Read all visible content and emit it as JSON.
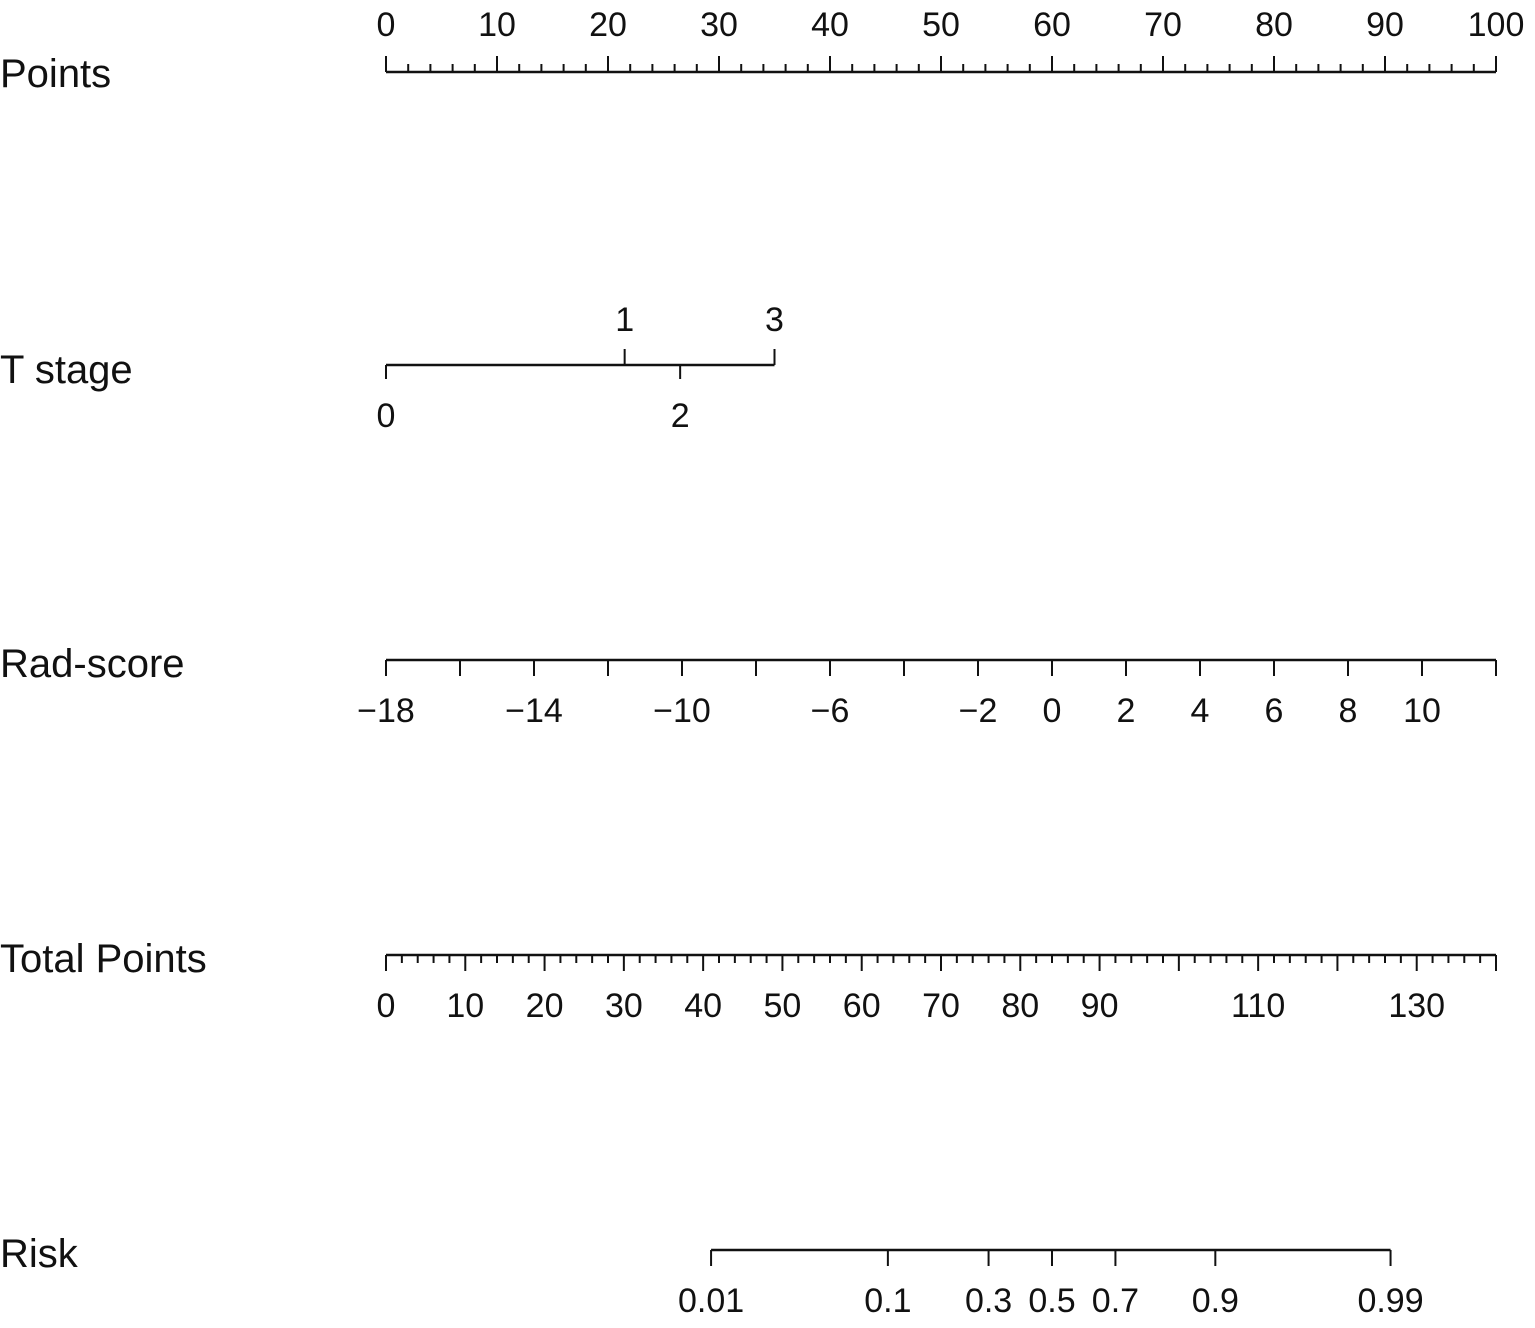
{
  "chart_data": {
    "type": "nomogram",
    "rows": [
      {
        "id": "points",
        "label": "Points",
        "min": 0,
        "max": 100,
        "major": [
          0,
          10,
          20,
          30,
          40,
          50,
          60,
          70,
          80,
          90,
          100
        ],
        "minor_step": 2,
        "label_side": "above",
        "tick_dir": "up",
        "labels": [
          {
            "text": "0",
            "value": 0
          },
          {
            "text": "10",
            "value": 10
          },
          {
            "text": "20",
            "value": 20
          },
          {
            "text": "30",
            "value": 30
          },
          {
            "text": "40",
            "value": 40
          },
          {
            "text": "50",
            "value": 50
          },
          {
            "text": "60",
            "value": 60
          },
          {
            "text": "70",
            "value": 70
          },
          {
            "text": "80",
            "value": 80
          },
          {
            "text": "90",
            "value": 90
          },
          {
            "text": "100",
            "value": 100
          }
        ]
      },
      {
        "id": "t-stage",
        "label": "T stage",
        "points_min": 0,
        "points_max": 35,
        "labels": [
          {
            "text": "0",
            "value": 0,
            "points": 0,
            "side": "below"
          },
          {
            "text": "1",
            "value": 1,
            "points": 21.5,
            "side": "above"
          },
          {
            "text": "2",
            "value": 2,
            "points": 26.5,
            "side": "below"
          },
          {
            "text": "3",
            "value": 3,
            "points": 35,
            "side": "above"
          }
        ]
      },
      {
        "id": "rad-score",
        "label": "Rad-score",
        "min": -18,
        "max": 12,
        "major_step": 2,
        "label_side": "below",
        "tick_dir": "up",
        "labels": [
          {
            "text": "−18",
            "value": -18
          },
          {
            "text": "−14",
            "value": -14
          },
          {
            "text": "−10",
            "value": -10
          },
          {
            "text": "−6",
            "value": -6
          },
          {
            "text": "−2",
            "value": -2
          },
          {
            "text": "0",
            "value": 0
          },
          {
            "text": "2",
            "value": 2
          },
          {
            "text": "4",
            "value": 4
          },
          {
            "text": "6",
            "value": 6
          },
          {
            "text": "8",
            "value": 8
          },
          {
            "text": "10",
            "value": 10
          }
        ]
      },
      {
        "id": "total-points",
        "label": "Total Points",
        "min": 0,
        "max": 140,
        "major_step": 10,
        "minor_step": 2,
        "label_side": "below",
        "tick_dir": "up",
        "labels": [
          {
            "text": "0",
            "value": 0
          },
          {
            "text": "10",
            "value": 10
          },
          {
            "text": "20",
            "value": 20
          },
          {
            "text": "30",
            "value": 30
          },
          {
            "text": "40",
            "value": 40
          },
          {
            "text": "50",
            "value": 50
          },
          {
            "text": "60",
            "value": 60
          },
          {
            "text": "70",
            "value": 70
          },
          {
            "text": "80",
            "value": 80
          },
          {
            "text": "90",
            "value": 90
          },
          {
            "text": "110",
            "value": 110
          },
          {
            "text": "130",
            "value": 130
          }
        ]
      },
      {
        "id": "risk",
        "label": "Risk",
        "label_side": "below",
        "tick_dir": "up",
        "labels": [
          {
            "text": "0.01",
            "value": 0.01,
            "total_points": 41
          },
          {
            "text": "0.1",
            "value": 0.1,
            "total_points": 63.3
          },
          {
            "text": "0.3",
            "value": 0.3,
            "total_points": 76
          },
          {
            "text": "0.5",
            "value": 0.5,
            "total_points": 84
          },
          {
            "text": "0.7",
            "value": 0.7,
            "total_points": 92
          },
          {
            "text": "0.9",
            "value": 0.9,
            "total_points": 104.6
          },
          {
            "text": "0.99",
            "value": 0.99,
            "total_points": 126.7
          }
        ]
      }
    ]
  }
}
